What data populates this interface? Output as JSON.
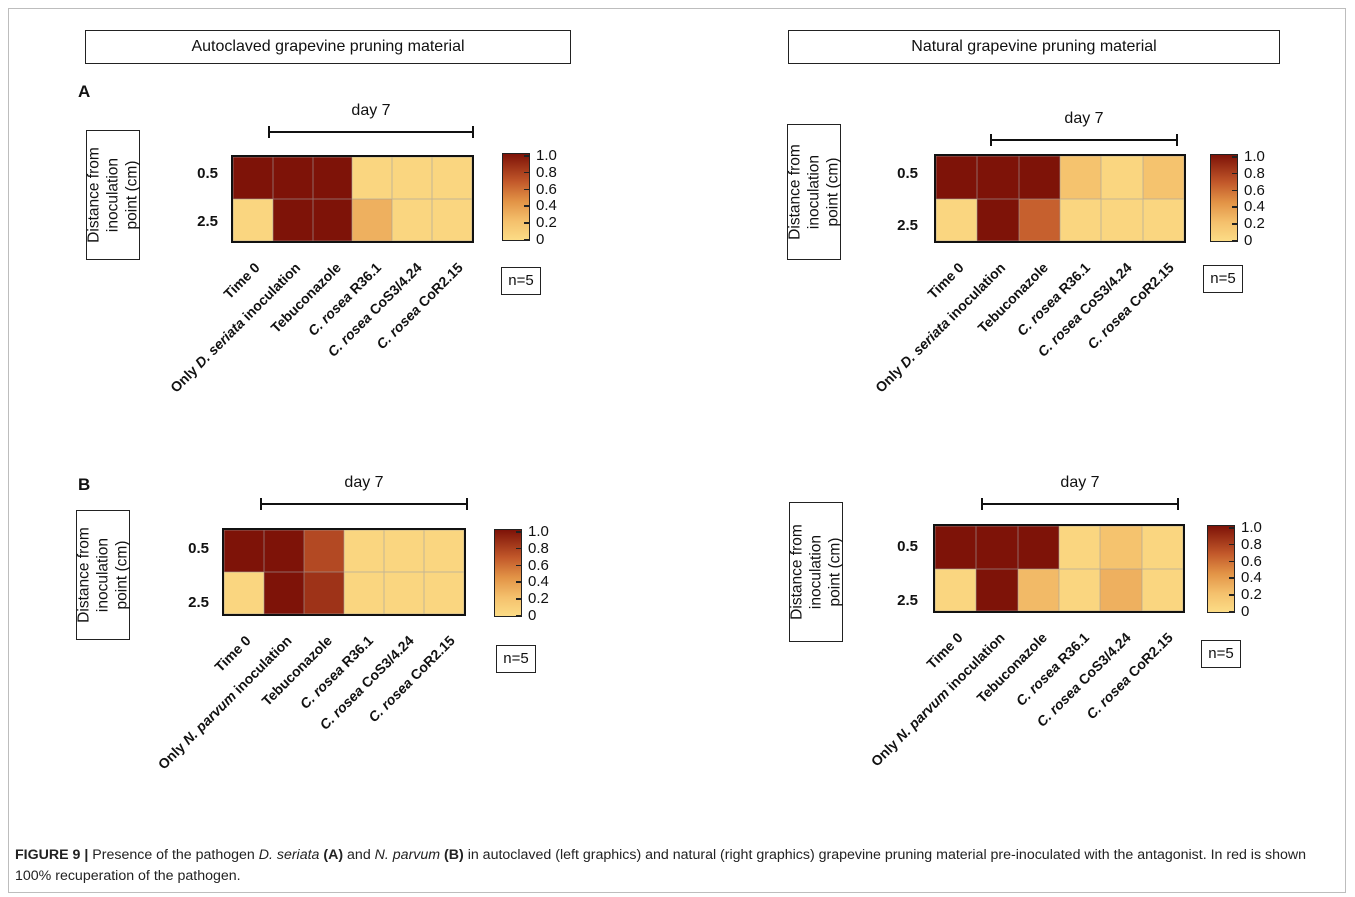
{
  "section_titles": [
    "Autoclaved grapevine pruning material",
    "Natural grapevine pruning material"
  ],
  "panel_letters": [
    "A",
    "B"
  ],
  "y_label_lines": [
    "Distance from",
    "inoculation",
    "point (cm)"
  ],
  "row_labels": [
    "0.5",
    "2.5"
  ],
  "day_label": "day 7",
  "n_label": "n=5",
  "colorbar": {
    "ticks": [
      "1.0",
      "0.8",
      "0.6",
      "0.4",
      "0.2",
      "0"
    ],
    "low_color": "#fcdc86",
    "high_color": "#7e1308"
  },
  "chart_data": [
    {
      "type": "heatmap",
      "title": "Autoclaved grapevine pruning material",
      "panel": "A",
      "ylabel": "Distance from inoculation point (cm)",
      "rows": [
        "0.5",
        "2.5"
      ],
      "columns": [
        "Time 0",
        "Only D. seriata inoculation",
        "Tebuconazole",
        "C. rosea R36.1",
        "C. rosea CoS3/4.24",
        "C. rosea CoR2.15"
      ],
      "values": [
        [
          1.0,
          1.0,
          1.0,
          0.05,
          0.05,
          0.05
        ],
        [
          0.05,
          1.0,
          1.0,
          0.3,
          0.05,
          0.05
        ]
      ],
      "colorbar_range": [
        0,
        1.0
      ]
    },
    {
      "type": "heatmap",
      "title": "Natural grapevine pruning material",
      "panel": "A",
      "ylabel": "Distance from inoculation point (cm)",
      "rows": [
        "0.5",
        "2.5"
      ],
      "columns": [
        "Time 0",
        "Only D. seriata inoculation",
        "Tebuconazole",
        "C. rosea R36.1",
        "C. rosea CoS3/4.24",
        "C. rosea CoR2.15"
      ],
      "values": [
        [
          1.0,
          1.0,
          1.0,
          0.2,
          0.05,
          0.2
        ],
        [
          0.05,
          1.0,
          0.65,
          0.05,
          0.05,
          0.05
        ]
      ],
      "colorbar_range": [
        0,
        1.0
      ]
    },
    {
      "type": "heatmap",
      "title": "Autoclaved grapevine pruning material",
      "panel": "B",
      "ylabel": "Distance from inoculation point (cm)",
      "rows": [
        "0.5",
        "2.5"
      ],
      "columns": [
        "Time 0",
        "Only N. parvum inoculation",
        "Tebuconazole",
        "C. rosea R36.1",
        "C. rosea CoS3/4.24",
        "C. rosea CoR2.15"
      ],
      "values": [
        [
          1.0,
          1.0,
          0.75,
          0.05,
          0.05,
          0.05
        ],
        [
          0.05,
          1.0,
          0.85,
          0.05,
          0.05,
          0.05
        ]
      ],
      "colorbar_range": [
        0,
        1.0
      ]
    },
    {
      "type": "heatmap",
      "title": "Natural grapevine pruning material",
      "panel": "B",
      "ylabel": "Distance from inoculation point (cm)",
      "rows": [
        "0.5",
        "2.5"
      ],
      "columns": [
        "Time 0",
        "Only N. parvum inoculation",
        "Tebuconazole",
        "C. rosea R36.1",
        "C. rosea CoS3/4.24",
        "C. rosea CoR2.15"
      ],
      "values": [
        [
          1.0,
          1.0,
          1.0,
          0.05,
          0.2,
          0.05
        ],
        [
          0.05,
          1.0,
          0.25,
          0.05,
          0.3,
          0.05
        ]
      ],
      "colorbar_range": [
        0,
        1.0
      ]
    }
  ],
  "caption": {
    "figure_label": "FIGURE 9 |",
    "t1": " Presence of the pathogen ",
    "sp1": "D. seriata",
    "l1": "(A)",
    "t2": " and ",
    "sp2": "N. parvum",
    "l2": "(B)",
    "t3": " in autoclaved (left graphics) and natural (right graphics) grapevine pruning material pre-inoculated with the antagonist. In red is shown 100% recuperation of the pathogen."
  }
}
